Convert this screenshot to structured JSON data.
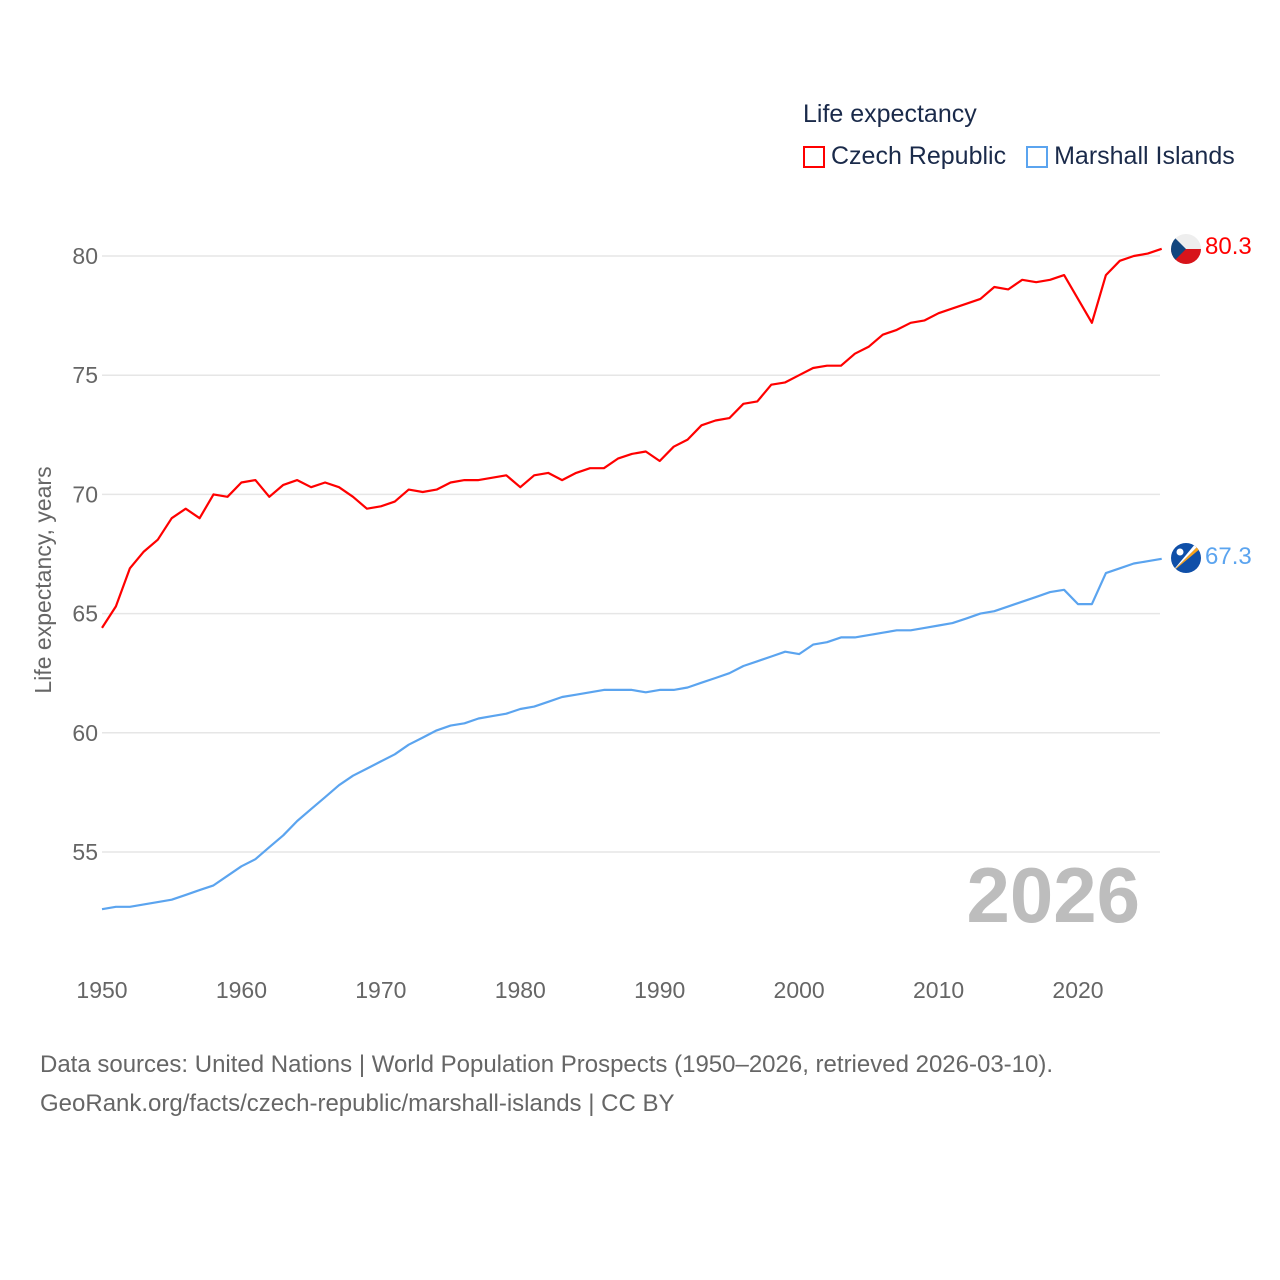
{
  "chart_data": {
    "type": "line",
    "title": "Life expectancy",
    "ylabel": "Life expectancy, years",
    "xlabel": "",
    "ylim": [
      52,
      82
    ],
    "xlim": [
      1950,
      2026
    ],
    "yticks": [
      55,
      60,
      65,
      70,
      75,
      80
    ],
    "xticks": [
      1950,
      1960,
      1970,
      1980,
      1990,
      2000,
      2010,
      2020
    ],
    "grid": true,
    "legend_position": "top-right",
    "current_year": "2026",
    "x": [
      1950,
      1951,
      1952,
      1953,
      1954,
      1955,
      1956,
      1957,
      1958,
      1959,
      1960,
      1961,
      1962,
      1963,
      1964,
      1965,
      1966,
      1967,
      1968,
      1969,
      1970,
      1971,
      1972,
      1973,
      1974,
      1975,
      1976,
      1977,
      1978,
      1979,
      1980,
      1981,
      1982,
      1983,
      1984,
      1985,
      1986,
      1987,
      1988,
      1989,
      1990,
      1991,
      1992,
      1993,
      1994,
      1995,
      1996,
      1997,
      1998,
      1999,
      2000,
      2001,
      2002,
      2003,
      2004,
      2005,
      2006,
      2007,
      2008,
      2009,
      2010,
      2011,
      2012,
      2013,
      2014,
      2015,
      2016,
      2017,
      2018,
      2019,
      2020,
      2021,
      2022,
      2023,
      2024,
      2025,
      2026
    ],
    "series": [
      {
        "name": "Czech Republic",
        "color": "#ff0000",
        "end_label": "80.3",
        "values": [
          64.4,
          65.3,
          66.9,
          67.6,
          68.1,
          69.0,
          69.4,
          69.0,
          70.0,
          69.9,
          70.5,
          70.6,
          69.9,
          70.4,
          70.6,
          70.3,
          70.5,
          70.3,
          69.9,
          69.4,
          69.5,
          69.7,
          70.2,
          70.1,
          70.2,
          70.5,
          70.6,
          70.6,
          70.7,
          70.8,
          70.3,
          70.8,
          70.9,
          70.6,
          70.9,
          71.1,
          71.1,
          71.5,
          71.7,
          71.8,
          71.4,
          72.0,
          72.3,
          72.9,
          73.1,
          73.2,
          73.8,
          73.9,
          74.6,
          74.7,
          75.0,
          75.3,
          75.4,
          75.4,
          75.9,
          76.2,
          76.7,
          76.9,
          77.2,
          77.3,
          77.6,
          77.8,
          78.0,
          78.2,
          78.7,
          78.6,
          79.0,
          78.9,
          79.0,
          79.2,
          78.2,
          77.2,
          79.2,
          79.8,
          80.0,
          80.1,
          80.3
        ]
      },
      {
        "name": "Marshall Islands",
        "color": "#5ba4ef",
        "end_label": "67.3",
        "values": [
          52.6,
          52.7,
          52.7,
          52.8,
          52.9,
          53.0,
          53.2,
          53.4,
          53.6,
          54.0,
          54.4,
          54.7,
          55.2,
          55.7,
          56.3,
          56.8,
          57.3,
          57.8,
          58.2,
          58.5,
          58.8,
          59.1,
          59.5,
          59.8,
          60.1,
          60.3,
          60.4,
          60.6,
          60.7,
          60.8,
          61.0,
          61.1,
          61.3,
          61.5,
          61.6,
          61.7,
          61.8,
          61.8,
          61.8,
          61.7,
          61.8,
          61.8,
          61.9,
          62.1,
          62.3,
          62.5,
          62.8,
          63.0,
          63.2,
          63.4,
          63.3,
          63.7,
          63.8,
          64.0,
          64.0,
          64.1,
          64.2,
          64.3,
          64.3,
          64.4,
          64.5,
          64.6,
          64.8,
          65.0,
          65.1,
          65.3,
          65.5,
          65.7,
          65.9,
          66.0,
          65.4,
          65.4,
          66.7,
          66.9,
          67.1,
          67.2,
          67.3
        ]
      }
    ]
  },
  "footer": {
    "line1": "Data sources: United Nations | World Population Prospects (1950–2026, retrieved 2026-03-10).",
    "line2": "GeoRank.org/facts/czech-republic/marshall-islands | CC BY"
  }
}
